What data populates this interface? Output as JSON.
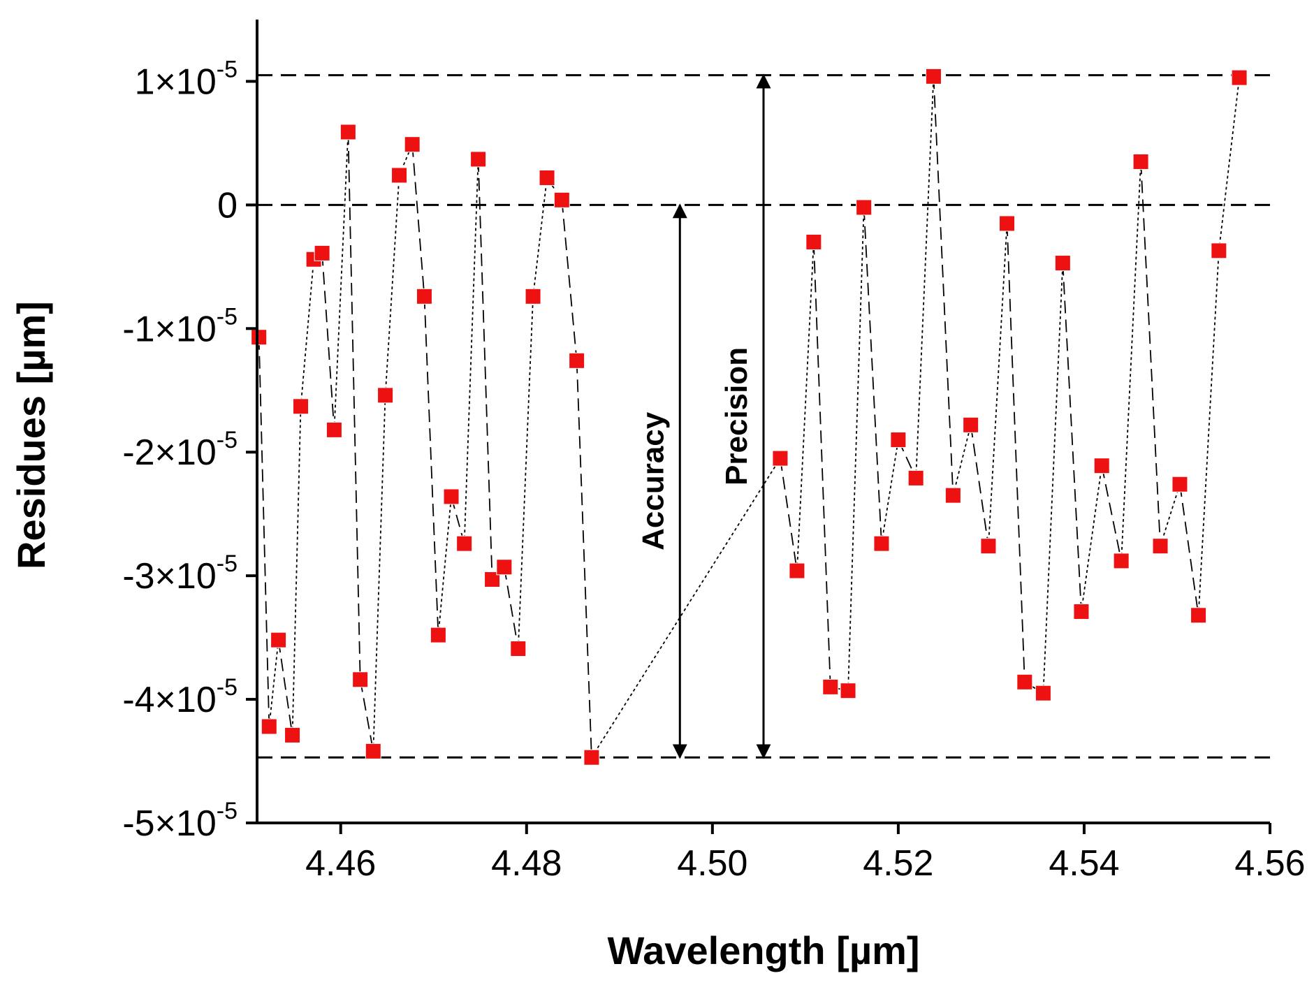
{
  "chart_data": {
    "type": "scatter",
    "title": "",
    "xlabel": "Wavelength [µm]",
    "ylabel": "Residues [µm]",
    "xlim": [
      4.451,
      4.56
    ],
    "ylim": [
      -5e-05,
      1.5e-05
    ],
    "x_ticks": [
      4.46,
      4.48,
      4.5,
      4.52,
      4.54,
      4.56
    ],
    "x_tick_labels": [
      "4.46",
      "4.48",
      "4.50",
      "4.52",
      "4.54",
      "4.56"
    ],
    "y_ticks": [
      {
        "value": 1e-05,
        "mant": "1",
        "exp": "-5"
      },
      {
        "value": 0,
        "mant": "0",
        "exp": ""
      },
      {
        "value": -1e-05,
        "mant": "-1",
        "exp": "-5"
      },
      {
        "value": -2e-05,
        "mant": "-2",
        "exp": "-5"
      },
      {
        "value": -3e-05,
        "mant": "-3",
        "exp": "-5"
      },
      {
        "value": -4e-05,
        "mant": "-4",
        "exp": "-5"
      },
      {
        "value": -5e-05,
        "mant": "-5",
        "exp": "-5"
      }
    ],
    "reference_lines": [
      1.05e-05,
      0,
      -4.47e-05
    ],
    "annotations": [
      {
        "text": "Accuracy",
        "x": 4.4965,
        "y_from": 0,
        "y_to": -4.47e-05
      },
      {
        "text": "Precision",
        "x": 4.5055,
        "y_from": 1.05e-05,
        "y_to": -4.47e-05
      }
    ],
    "series": [
      {
        "name": "Residues",
        "color": "#ee1111",
        "points": [
          [
            4.4512,
            -1.07e-05
          ],
          [
            4.4523,
            -4.22e-05
          ],
          [
            4.4533,
            -3.52e-05
          ],
          [
            4.4548,
            -4.29e-05
          ],
          [
            4.4557,
            -1.63e-05
          ],
          [
            4.4571,
            -4.4e-06
          ],
          [
            4.458,
            -3.9e-06
          ],
          [
            4.4593,
            -1.82e-05
          ],
          [
            4.4608,
            5.9e-06
          ],
          [
            4.4621,
            -3.84e-05
          ],
          [
            4.4635,
            -4.42e-05
          ],
          [
            4.4648,
            -1.54e-05
          ],
          [
            4.4663,
            2.4e-06
          ],
          [
            4.4677,
            4.9e-06
          ],
          [
            4.469,
            -7.4e-06
          ],
          [
            4.4705,
            -3.48e-05
          ],
          [
            4.4719,
            -2.36e-05
          ],
          [
            4.4733,
            -2.74e-05
          ],
          [
            4.4748,
            3.7e-06
          ],
          [
            4.4763,
            -3.03e-05
          ],
          [
            4.4776,
            -2.93e-05
          ],
          [
            4.4791,
            -3.59e-05
          ],
          [
            4.4807,
            -7.4e-06
          ],
          [
            4.4822,
            2.2e-06
          ],
          [
            4.4838,
            4e-07
          ],
          [
            4.4854,
            -1.26e-05
          ],
          [
            4.487,
            -4.47e-05
          ],
          [
            4.5073,
            -2.05e-05
          ],
          [
            4.5091,
            -2.96e-05
          ],
          [
            4.5109,
            -3e-06
          ],
          [
            4.5127,
            -3.9e-05
          ],
          [
            4.5146,
            -3.93e-05
          ],
          [
            4.5163,
            -2e-07
          ],
          [
            4.5182,
            -2.74e-05
          ],
          [
            4.52,
            -1.9e-05
          ],
          [
            4.5219,
            -2.21e-05
          ],
          [
            4.5238,
            1.04e-05
          ],
          [
            4.5259,
            -2.35e-05
          ],
          [
            4.5278,
            -1.78e-05
          ],
          [
            4.5297,
            -2.76e-05
          ],
          [
            4.5317,
            -1.5e-06
          ],
          [
            4.5336,
            -3.86e-05
          ],
          [
            4.5356,
            -3.95e-05
          ],
          [
            4.5377,
            -4.7e-06
          ],
          [
            4.5397,
            -3.29e-05
          ],
          [
            4.5419,
            -2.11e-05
          ],
          [
            4.544,
            -2.88e-05
          ],
          [
            4.5461,
            3.5e-06
          ],
          [
            4.5482,
            -2.76e-05
          ],
          [
            4.5503,
            -2.26e-05
          ],
          [
            4.5523,
            -3.32e-05
          ],
          [
            4.5545,
            -3.7e-06
          ],
          [
            4.5567,
            1.03e-05
          ]
        ]
      }
    ]
  }
}
